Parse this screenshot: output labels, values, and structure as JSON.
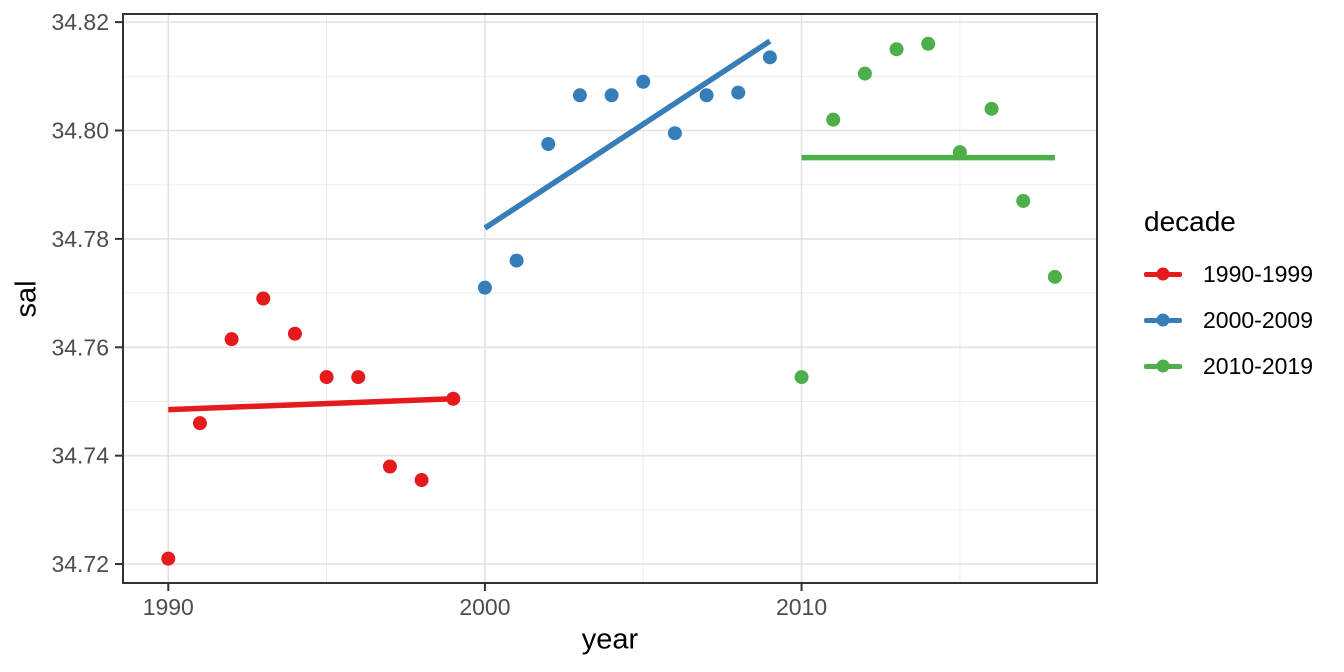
{
  "chart_data": {
    "type": "scatter",
    "title": "",
    "xlabel": "year",
    "ylabel": "sal",
    "legend_title": "decade",
    "legend_position": "right",
    "grid": true,
    "xlim": [
      1988.57,
      2019.33
    ],
    "ylim": [
      34.7165,
      34.8215
    ],
    "x_ticks": {
      "values": [
        1990,
        2000,
        2010
      ],
      "labels": [
        "1990",
        "2000",
        "2010"
      ]
    },
    "x_minor_ticks": [
      1995,
      2005,
      2015
    ],
    "y_ticks": {
      "values": [
        34.72,
        34.74,
        34.76,
        34.78,
        34.8,
        34.82
      ],
      "labels": [
        "34.72",
        "34.74",
        "34.76",
        "34.78",
        "34.80",
        "34.82"
      ]
    },
    "y_minor_ticks": [
      34.73,
      34.75,
      34.77,
      34.79,
      34.81
    ],
    "series": [
      {
        "name": "1990-1999",
        "color": "#E41A1C",
        "x": [
          1990,
          1991,
          1992,
          1993,
          1994,
          1995,
          1996,
          1997,
          1998,
          1999
        ],
        "y": [
          34.721,
          34.746,
          34.7615,
          34.769,
          34.7625,
          34.7545,
          34.7545,
          34.738,
          34.7355,
          34.7505
        ],
        "trend": {
          "x": [
            1990,
            1999
          ],
          "y": [
            34.7485,
            34.7505
          ]
        }
      },
      {
        "name": "2000-2009",
        "color": "#377EB8",
        "x": [
          2000,
          2001,
          2002,
          2003,
          2004,
          2005,
          2006,
          2007,
          2008,
          2009
        ],
        "y": [
          34.771,
          34.776,
          34.7975,
          34.8065,
          34.8065,
          34.809,
          34.7995,
          34.8065,
          34.807,
          34.8135
        ],
        "trend": {
          "x": [
            2000,
            2009
          ],
          "y": [
            34.782,
            34.8165
          ]
        }
      },
      {
        "name": "2010-2019",
        "color": "#4DAF4A",
        "x": [
          2010,
          2011,
          2012,
          2013,
          2014,
          2015,
          2016,
          2017,
          2018
        ],
        "y": [
          34.7545,
          34.802,
          34.8105,
          34.815,
          34.816,
          34.796,
          34.804,
          34.787,
          34.773
        ],
        "trend": {
          "x": [
            2010,
            2018
          ],
          "y": [
            34.795,
            34.795
          ]
        }
      }
    ],
    "style": {
      "point_radius": 7,
      "trend_width": 5.5,
      "grid_major_color": "#E2E2E2",
      "grid_minor_color": "#EDEDED",
      "panel_border_color": "#333333",
      "tick_color": "#333333",
      "tick_label_color": "#4D4D4D",
      "axis_title_color": "#000000",
      "panel_background": "#FFFFFF"
    }
  }
}
